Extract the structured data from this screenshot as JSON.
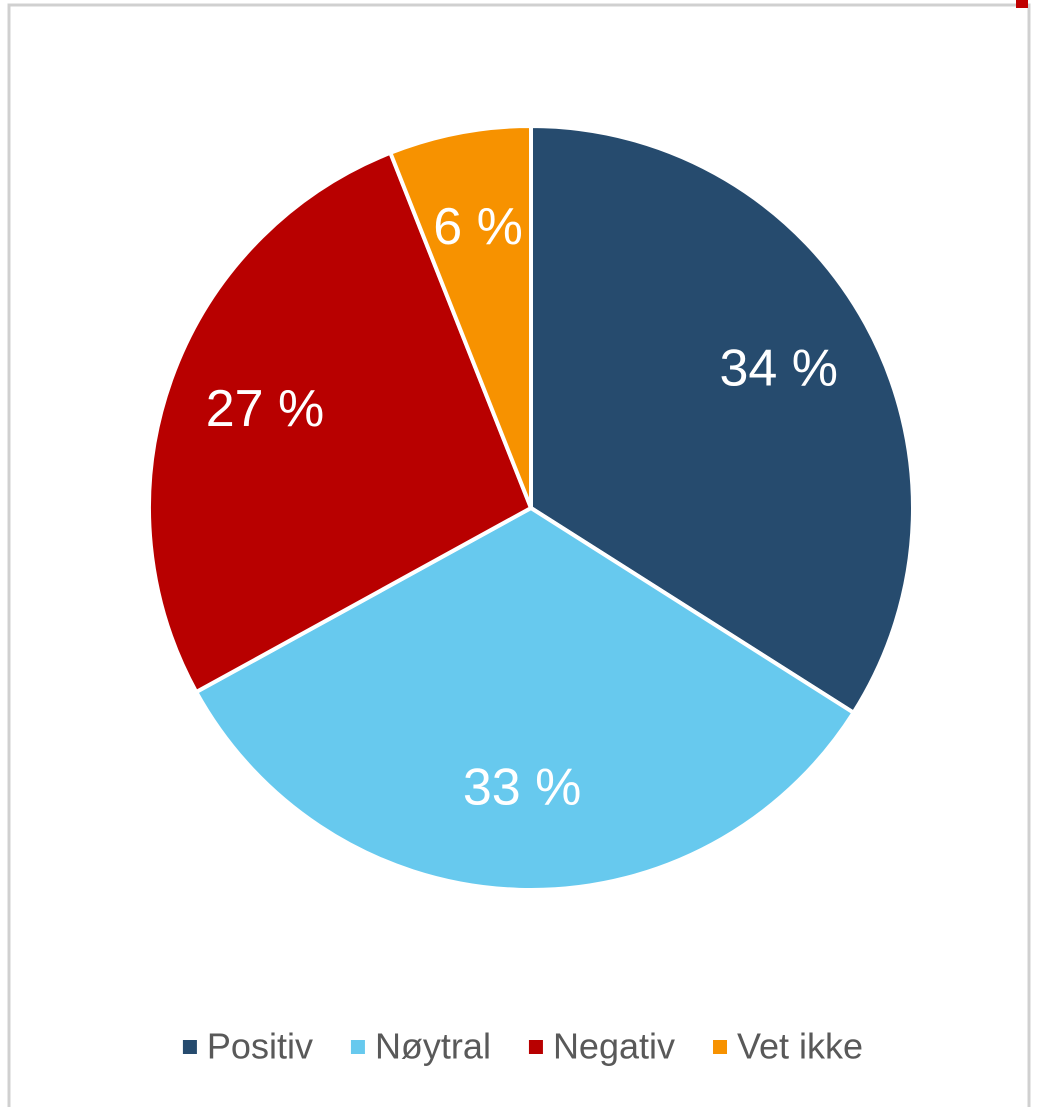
{
  "chart_data": {
    "type": "pie",
    "categories": [
      "Positiv",
      "Nøytral",
      "Negativ",
      "Vet ikke"
    ],
    "values": [
      34,
      33,
      27,
      6
    ],
    "value_labels": [
      "34 %",
      "33 %",
      "27 %",
      "6 %"
    ],
    "colors": [
      "#264b6e",
      "#67c9ee",
      "#b80000",
      "#f79200"
    ],
    "legend": "bottom"
  }
}
